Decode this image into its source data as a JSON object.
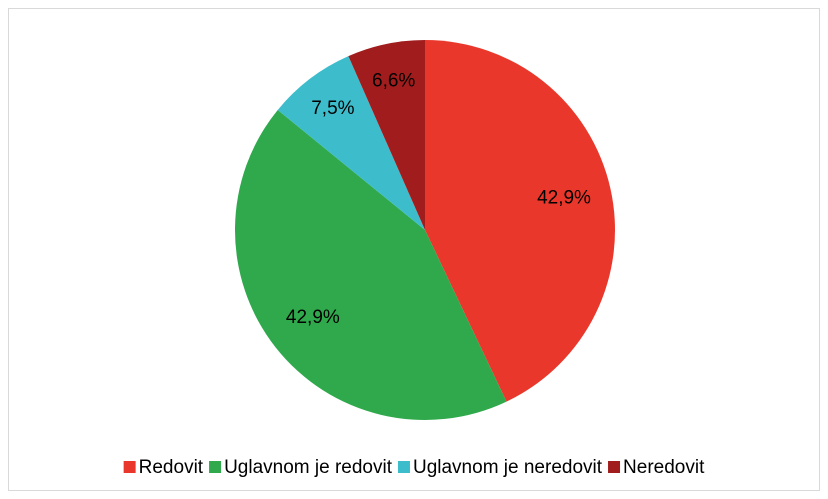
{
  "chart_data": {
    "type": "pie",
    "categories": [
      "Redovit",
      "Uglavnom je redovit",
      "Uglavnom je neredovit",
      "Neredovit"
    ],
    "values": [
      42.9,
      42.9,
      7.5,
      6.6
    ],
    "value_labels": [
      "42,9%",
      "42,9%",
      "7,5%",
      "6,6%"
    ],
    "colors": [
      "#e9382b",
      "#2fa94b",
      "#3dbdcc",
      "#a11d1d"
    ],
    "legend": "bottom"
  }
}
